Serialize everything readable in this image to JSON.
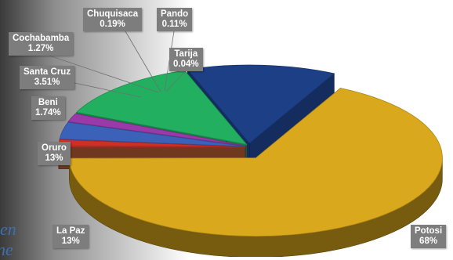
{
  "chart_data": {
    "type": "pie",
    "style": "3d-exploded",
    "slices": [
      {
        "name": "Potosi",
        "value": 68,
        "label": "68%",
        "color": "#d9a81c"
      },
      {
        "name": "Tarija",
        "value": 0.04,
        "label": "0.04%",
        "color": "#a0522d"
      },
      {
        "name": "Pando",
        "value": 0.11,
        "label": "0.11%",
        "color": "#b03030"
      },
      {
        "name": "Chuquisaca",
        "value": 0.19,
        "label": "0.19%",
        "color": "#e03030"
      },
      {
        "name": "Cochabamba",
        "value": 1.27,
        "label": "1.27%",
        "color": "#cf2f25"
      },
      {
        "name": "Santa Cruz",
        "value": 3.51,
        "label": "3.51%",
        "color": "#3b61b8"
      },
      {
        "name": "Beni",
        "value": 1.74,
        "label": "1.74%",
        "color": "#9a3aa8"
      },
      {
        "name": "Oruro",
        "value": 13,
        "label": "13%",
        "color": "#22b060"
      },
      {
        "name": "La Paz",
        "value": 13,
        "label": "13%",
        "color": "#1d3f86"
      }
    ],
    "label_box_color": "#7d7d7d"
  },
  "background_fragments": [
    "en",
    "ne"
  ]
}
